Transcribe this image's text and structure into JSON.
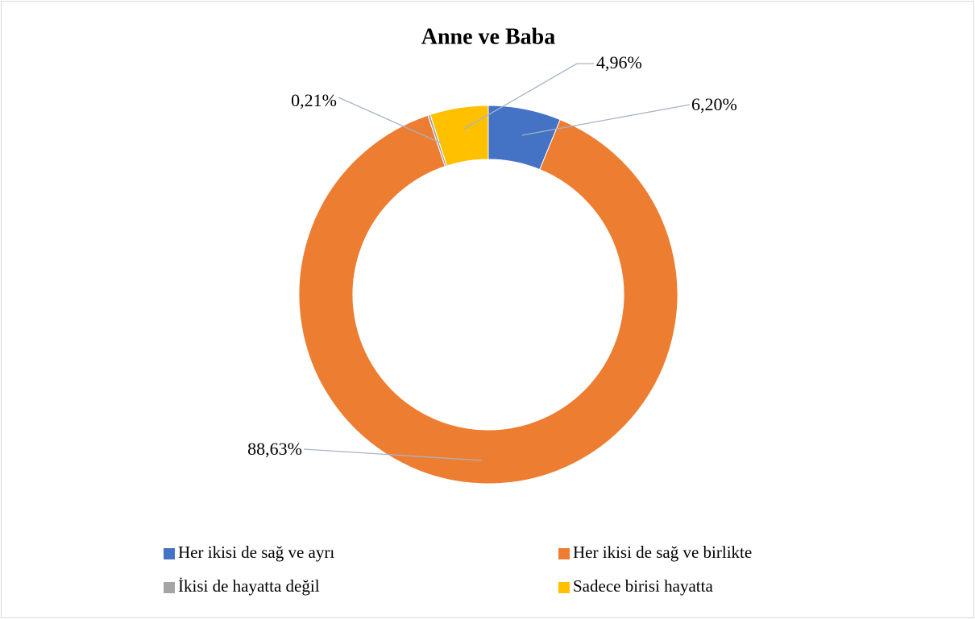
{
  "chart_data": {
    "type": "donut",
    "title": "Anne ve Baba",
    "categories": [
      "Her ikisi de sağ ve ayrı",
      "Her ikisi de sağ ve birlikte",
      "İkisi de hayatta değil",
      "Sadece birisi hayatta"
    ],
    "values": [
      6.2,
      88.63,
      0.21,
      4.96
    ],
    "value_labels": [
      "6,20%",
      "88,63%",
      "0,21%",
      "4,96%"
    ],
    "colors": [
      "#4472c4",
      "#ed7d31",
      "#a5a5a5",
      "#ffc000"
    ],
    "legend": "bottom"
  }
}
